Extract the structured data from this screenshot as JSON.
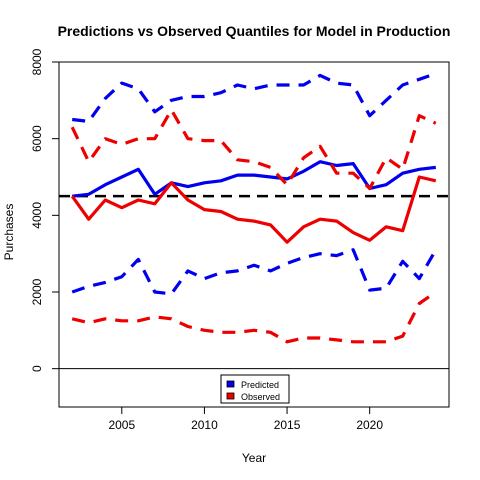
{
  "chart_data": {
    "type": "line",
    "title": "Predictions vs Observed Quantiles for Model in Production",
    "xlabel": "Year",
    "ylabel": "Purchases",
    "xlim": [
      2001.2,
      2024.8
    ],
    "ylim": [
      -1000,
      8000
    ],
    "x_ticks": [
      2005,
      2010,
      2015,
      2020
    ],
    "y_ticks": [
      0,
      2000,
      4000,
      6000,
      8000
    ],
    "reference_line": {
      "y": 4500,
      "style": "dashed",
      "color": "#000000"
    },
    "zero_line": {
      "y": 0,
      "color": "#000000"
    },
    "legend": {
      "position": "bottom-center",
      "entries": [
        {
          "label": "Predicted",
          "color": "#0000ee"
        },
        {
          "label": "Observed",
          "color": "#ee0000"
        }
      ]
    },
    "x": [
      2002,
      2003,
      2004,
      2005,
      2006,
      2007,
      2008,
      2009,
      2010,
      2011,
      2012,
      2013,
      2014,
      2015,
      2016,
      2017,
      2018,
      2019,
      2020,
      2021,
      2022,
      2023,
      2024
    ],
    "series": [
      {
        "group": "Predicted",
        "role": "upper",
        "style": "dashed",
        "color": "#0000ee",
        "values": [
          6500,
          6450,
          7050,
          7450,
          7300,
          6700,
          7000,
          7100,
          7100,
          7200,
          7400,
          7300,
          7400,
          7400,
          7400,
          7650,
          7450,
          7400,
          6600,
          7000,
          7400,
          7550,
          7700
        ]
      },
      {
        "group": "Predicted",
        "role": "median",
        "style": "solid",
        "color": "#0000ee",
        "values": [
          4500,
          4550,
          4800,
          5000,
          5200,
          4550,
          4850,
          4750,
          4850,
          4900,
          5050,
          5050,
          5000,
          4950,
          5150,
          5400,
          5300,
          5350,
          4700,
          4800,
          5100,
          5200,
          5250
        ]
      },
      {
        "group": "Predicted",
        "role": "lower",
        "style": "dashed",
        "color": "#0000ee",
        "values": [
          2000,
          2150,
          2250,
          2400,
          2850,
          2000,
          1950,
          2550,
          2350,
          2500,
          2550,
          2700,
          2550,
          2750,
          2900,
          3000,
          2950,
          3100,
          2050,
          2100,
          2800,
          2350,
          3100
        ]
      },
      {
        "group": "Observed",
        "role": "upper",
        "style": "dashed",
        "color": "#ee0000",
        "values": [
          6300,
          5400,
          6000,
          5850,
          6000,
          6000,
          6750,
          6000,
          5950,
          5950,
          5450,
          5400,
          5250,
          4800,
          5500,
          5800,
          5100,
          5100,
          4700,
          5500,
          5200,
          6600,
          6400
        ]
      },
      {
        "group": "Observed",
        "role": "median",
        "style": "solid",
        "color": "#ee0000",
        "values": [
          4500,
          3900,
          4400,
          4200,
          4400,
          4300,
          4850,
          4400,
          4150,
          4100,
          3900,
          3850,
          3750,
          3300,
          3700,
          3900,
          3850,
          3550,
          3350,
          3700,
          3600,
          5000,
          4900
        ]
      },
      {
        "group": "Observed",
        "role": "lower",
        "style": "dashed",
        "color": "#ee0000",
        "values": [
          1300,
          1200,
          1300,
          1250,
          1250,
          1350,
          1300,
          1100,
          1000,
          950,
          950,
          1000,
          950,
          700,
          800,
          800,
          750,
          700,
          700,
          700,
          850,
          1700,
          2000
        ]
      }
    ]
  }
}
